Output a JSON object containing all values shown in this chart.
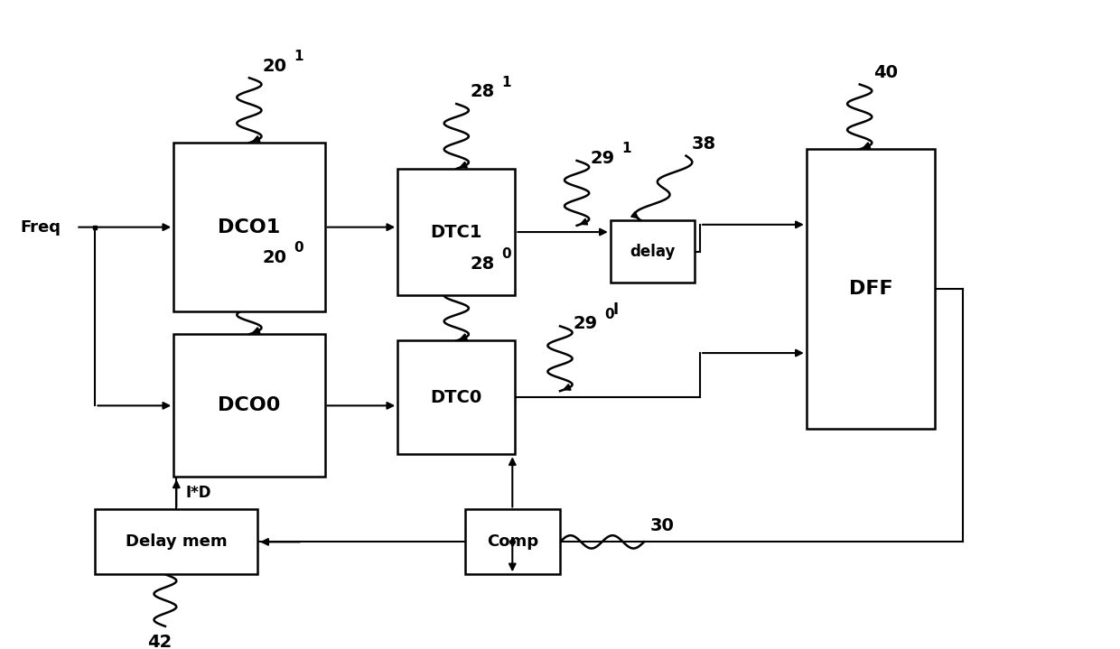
{
  "bg_color": "#ffffff",
  "blocks_coords": {
    "DCO1": [
      0.155,
      0.52,
      0.135,
      0.26
    ],
    "DTC1": [
      0.355,
      0.545,
      0.105,
      0.195
    ],
    "delay": [
      0.545,
      0.565,
      0.075,
      0.095
    ],
    "DFF": [
      0.72,
      0.34,
      0.115,
      0.43
    ],
    "DCO0": [
      0.155,
      0.265,
      0.135,
      0.22
    ],
    "DTC0": [
      0.355,
      0.3,
      0.105,
      0.175
    ],
    "Comp": [
      0.415,
      0.115,
      0.085,
      0.1
    ],
    "DelayMem": [
      0.085,
      0.115,
      0.145,
      0.1
    ]
  },
  "block_labels": {
    "DCO1": "DCO1",
    "DTC1": "DTC1",
    "delay": "delay",
    "DFF": "DFF",
    "DCO0": "DCO0",
    "DTC0": "DTC0",
    "Comp": "Comp",
    "DelayMem": "Delay mem"
  },
  "block_fontsize": {
    "DCO1": 16,
    "DTC1": 14,
    "delay": 12,
    "DFF": 16,
    "DCO0": 16,
    "DTC0": 14,
    "Comp": 13,
    "DelayMem": 13
  }
}
